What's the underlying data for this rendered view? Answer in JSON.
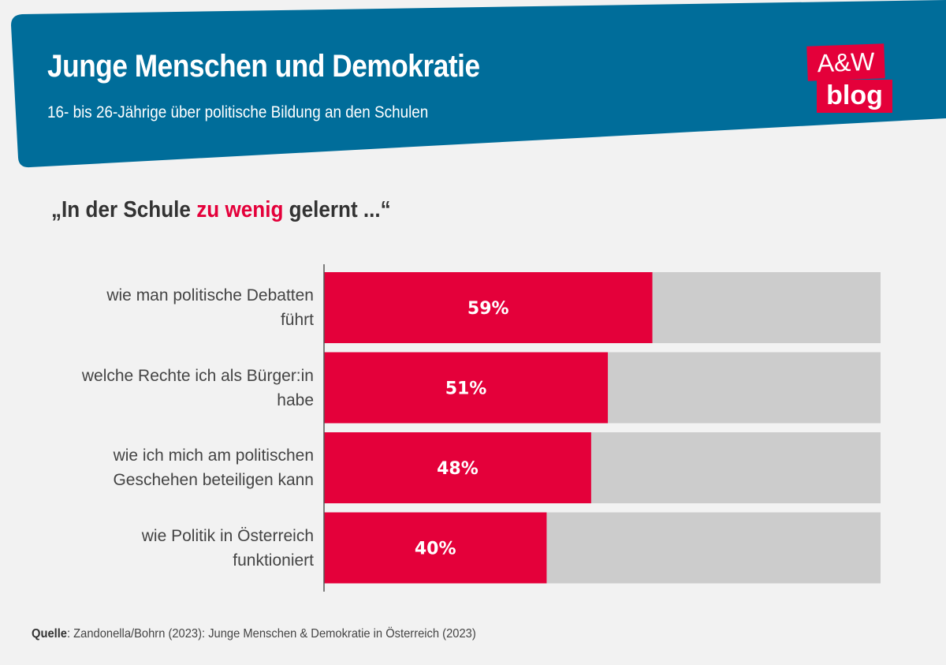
{
  "header": {
    "title": "Junge Menschen und Demokratie",
    "subtitle": "16- bis 26-Jährige über politische Bildung an den Schulen",
    "logo": {
      "line1": "A&W",
      "line2": "blog"
    }
  },
  "question": {
    "prefix": "„In der Schule ",
    "highlight": "zu wenig",
    "suffix": " gelernt ...“"
  },
  "source": {
    "label": "Quelle",
    "text": ": Zandonella/Bohrn (2023): Junge Menschen & Demokratie in Österreich (2023)"
  },
  "colors": {
    "header": "#006d9a",
    "accent": "#e4003a",
    "remainder": "#cccccc"
  },
  "chart_data": {
    "type": "bar",
    "orientation": "horizontal",
    "stacked_to": 100,
    "categories": [
      [
        "wie man politische Debatten",
        "führt"
      ],
      [
        "welche Rechte ich als Bürger:in",
        "habe"
      ],
      [
        "wie ich mich am politischen",
        "Geschehen beteiligen kann"
      ],
      [
        "wie Politik in Österreich",
        "funktioniert"
      ]
    ],
    "values": [
      59,
      51,
      48,
      40
    ],
    "data_labels": [
      "59%",
      "51%",
      "48%",
      "40%"
    ],
    "xlim": [
      0,
      100
    ],
    "grid": false
  }
}
